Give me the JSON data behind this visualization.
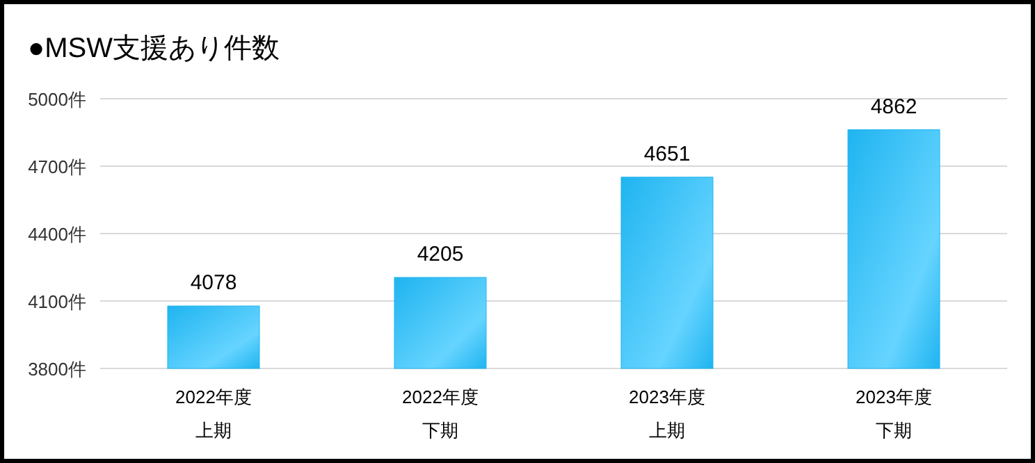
{
  "chart_data": {
    "type": "bar",
    "title": "●MSW支援あり件数",
    "categories": [
      "2022年度上期",
      "2022年度下期",
      "2023年度上期",
      "2023年度下期"
    ],
    "values": [
      4078,
      4205,
      4651,
      4862
    ],
    "color": "#1fb4f0",
    "ylim": [
      3800,
      5000
    ],
    "yticks": [
      {
        "value": 3800,
        "label": "3800件"
      },
      {
        "value": 4100,
        "label": "4100件"
      },
      {
        "value": 4400,
        "label": "4400件"
      },
      {
        "value": 4700,
        "label": "4700件"
      },
      {
        "value": 5000,
        "label": "5000件"
      }
    ],
    "grid": "y",
    "data_labels": true
  }
}
